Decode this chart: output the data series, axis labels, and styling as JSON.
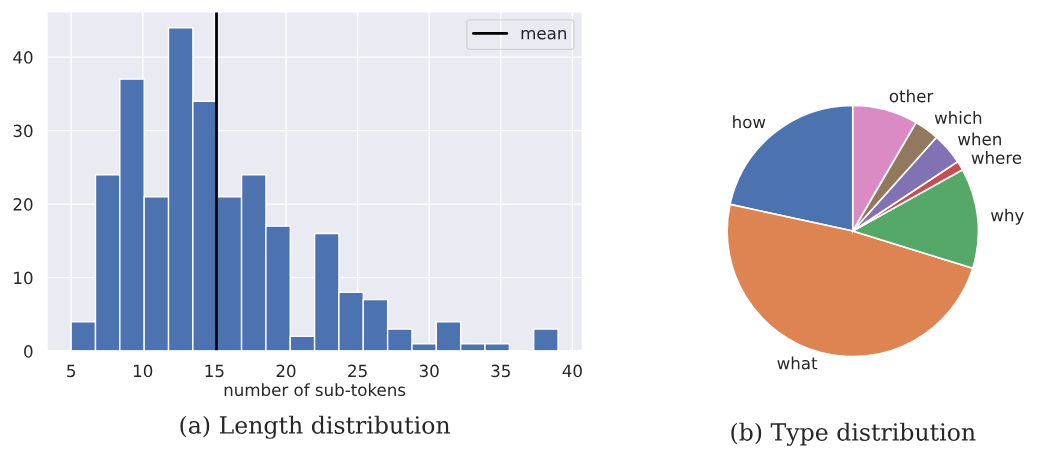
{
  "chart_data": [
    {
      "type": "histogram",
      "title": "(a) Length distribution",
      "xlabel": "number of sub-tokens",
      "bins": [
        5,
        6.7,
        8.4,
        10.1,
        11.8,
        13.5,
        15.2,
        16.9,
        18.6,
        20.3,
        22,
        23.7,
        25.4,
        27.1,
        28.8,
        30.5,
        32.2,
        33.9,
        35.6,
        37.3,
        39
      ],
      "values": [
        4,
        24,
        37,
        21,
        44,
        34,
        21,
        24,
        17,
        2,
        16,
        8,
        7,
        3,
        1,
        4,
        1,
        1,
        0,
        3
      ],
      "color": "#4c72b0",
      "xlim": [
        3.3,
        40.7
      ],
      "ylim": [
        0,
        46.2
      ],
      "xticks": [
        5,
        10,
        15,
        20,
        25,
        30,
        35,
        40
      ],
      "yticks": [
        0,
        10,
        20,
        30,
        40
      ],
      "grid": true,
      "legend": "top right",
      "ref_lines": [
        {
          "axis": "x",
          "value": 15.15,
          "label": "mean",
          "color": "#000000"
        }
      ]
    },
    {
      "type": "pie",
      "title": "(b) Type distribution",
      "categories": [
        "how",
        "what",
        "why",
        "where",
        "when",
        "which",
        "other"
      ],
      "values": [
        21.6,
        48.6,
        12.9,
        1.2,
        4.1,
        3.2,
        8.4
      ],
      "colors": [
        "#4c72b0",
        "#dd8452",
        "#55a868",
        "#c44e52",
        "#8172b3",
        "#937860",
        "#da8bc3"
      ]
    }
  ]
}
